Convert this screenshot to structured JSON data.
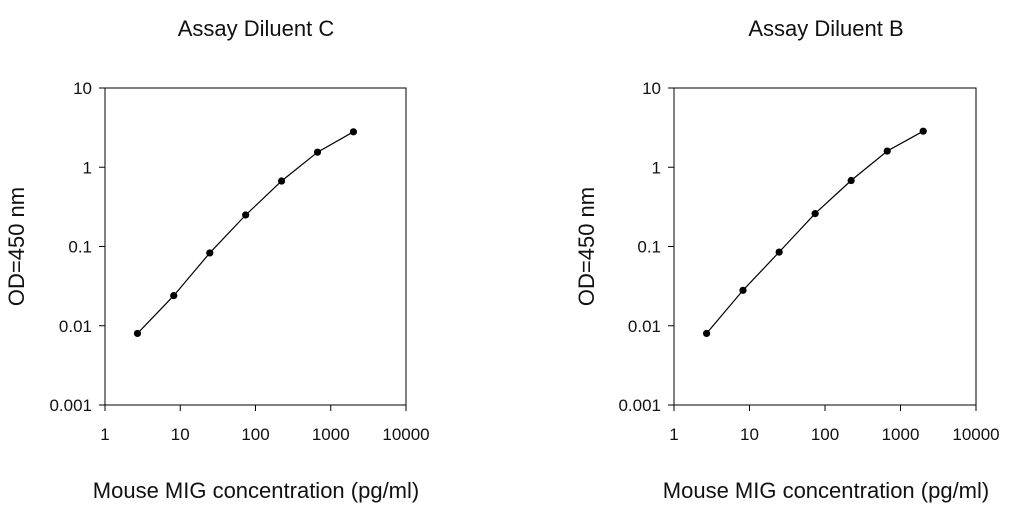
{
  "chart_data": [
    {
      "type": "scatter",
      "title": "Assay Diluent C",
      "xlabel": "Mouse MIG concentration (pg/ml)",
      "ylabel": "OD=450 nm",
      "xscale": "log",
      "yscale": "log",
      "xlim": [
        1,
        10000
      ],
      "ylim": [
        0.001,
        10
      ],
      "xticks": [
        "1",
        "10",
        "100",
        "1000",
        "10000"
      ],
      "yticks": [
        "0.001",
        "0.01",
        "0.1",
        "1",
        "10"
      ],
      "grid": false,
      "connected": true,
      "x": [
        2.7,
        8.2,
        24.7,
        74,
        222,
        667,
        2000
      ],
      "y": [
        0.008,
        0.024,
        0.083,
        0.25,
        0.67,
        1.55,
        2.8
      ]
    },
    {
      "type": "scatter",
      "title": "Assay Diluent B",
      "xlabel": "Mouse MIG concentration (pg/ml)",
      "ylabel": "OD=450 nm",
      "xscale": "log",
      "yscale": "log",
      "xlim": [
        1,
        10000
      ],
      "ylim": [
        0.001,
        10
      ],
      "xticks": [
        "1",
        "10",
        "100",
        "1000",
        "10000"
      ],
      "yticks": [
        "0.001",
        "0.01",
        "0.1",
        "1",
        "10"
      ],
      "grid": false,
      "connected": true,
      "x": [
        2.7,
        8.2,
        24.7,
        74,
        222,
        667,
        2000
      ],
      "y": [
        0.008,
        0.028,
        0.085,
        0.26,
        0.68,
        1.6,
        2.85
      ]
    }
  ]
}
